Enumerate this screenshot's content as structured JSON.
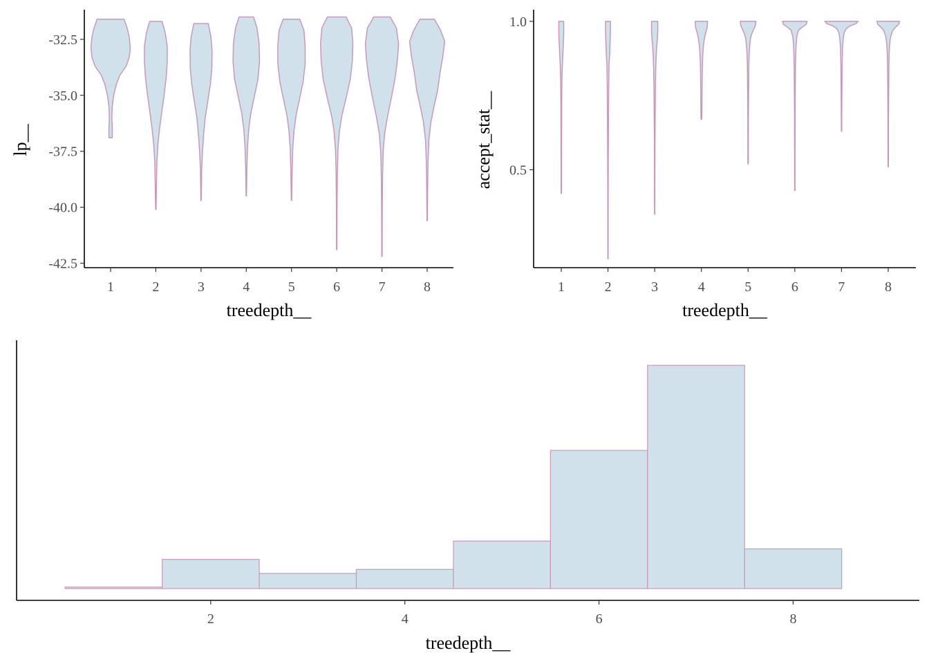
{
  "colors": {
    "fill": "#d1e1ec",
    "outline": "#c799b9",
    "axis": "#000000",
    "tick_text": "#4d4d4d"
  },
  "chart_data": [
    {
      "type": "violin",
      "xlabel": "treedepth__",
      "ylabel": "lp__",
      "categories": [
        "1",
        "2",
        "3",
        "4",
        "5",
        "6",
        "7",
        "8"
      ],
      "y_ticks": [
        -32.5,
        -35.0,
        -37.5,
        -40.0,
        -42.5
      ],
      "y_tick_labels": [
        "-32.5",
        "-35.0",
        "-37.5",
        "-40.0",
        "-42.5"
      ],
      "ylim": [
        -42.7,
        -31.3
      ],
      "violins": [
        {
          "category": "1",
          "max": -31.6,
          "min": -36.9,
          "profile": [
            [
              -31.6,
              0.65
            ],
            [
              -32.0,
              0.8
            ],
            [
              -32.4,
              0.9
            ],
            [
              -32.9,
              0.95
            ],
            [
              -33.3,
              0.9
            ],
            [
              -33.7,
              0.75
            ],
            [
              -34.1,
              0.45
            ],
            [
              -34.5,
              0.28
            ],
            [
              -35.0,
              0.15
            ],
            [
              -35.5,
              0.08
            ],
            [
              -36.0,
              0.06
            ],
            [
              -36.5,
              0.08
            ],
            [
              -36.9,
              0.08
            ]
          ]
        },
        {
          "category": "2",
          "max": -31.7,
          "min": -40.1,
          "profile": [
            [
              -31.7,
              0.3
            ],
            [
              -32.2,
              0.45
            ],
            [
              -32.8,
              0.55
            ],
            [
              -33.5,
              0.55
            ],
            [
              -34.2,
              0.5
            ],
            [
              -35.0,
              0.4
            ],
            [
              -35.8,
              0.28
            ],
            [
              -36.5,
              0.18
            ],
            [
              -37.2,
              0.1
            ],
            [
              -38.0,
              0.05
            ],
            [
              -39.0,
              0.03
            ],
            [
              -40.1,
              0.01
            ]
          ]
        },
        {
          "category": "3",
          "max": -31.8,
          "min": -39.7,
          "profile": [
            [
              -31.8,
              0.35
            ],
            [
              -32.4,
              0.48
            ],
            [
              -33.0,
              0.53
            ],
            [
              -33.8,
              0.52
            ],
            [
              -34.5,
              0.45
            ],
            [
              -35.3,
              0.32
            ],
            [
              -36.0,
              0.2
            ],
            [
              -36.8,
              0.12
            ],
            [
              -37.5,
              0.07
            ],
            [
              -38.3,
              0.03
            ],
            [
              -39.0,
              0.02
            ],
            [
              -39.7,
              0.01
            ]
          ]
        },
        {
          "category": "4",
          "max": -31.5,
          "min": -39.5,
          "profile": [
            [
              -31.5,
              0.35
            ],
            [
              -32.0,
              0.52
            ],
            [
              -32.7,
              0.62
            ],
            [
              -33.5,
              0.64
            ],
            [
              -34.3,
              0.56
            ],
            [
              -35.1,
              0.38
            ],
            [
              -35.8,
              0.22
            ],
            [
              -36.5,
              0.12
            ],
            [
              -37.3,
              0.06
            ],
            [
              -38.2,
              0.03
            ],
            [
              -39.5,
              0.01
            ]
          ]
        },
        {
          "category": "5",
          "max": -31.6,
          "min": -39.7,
          "profile": [
            [
              -31.6,
              0.4
            ],
            [
              -32.1,
              0.6
            ],
            [
              -32.8,
              0.66
            ],
            [
              -33.6,
              0.66
            ],
            [
              -34.4,
              0.56
            ],
            [
              -35.2,
              0.38
            ],
            [
              -35.9,
              0.22
            ],
            [
              -36.6,
              0.12
            ],
            [
              -37.4,
              0.06
            ],
            [
              -38.4,
              0.03
            ],
            [
              -39.7,
              0.01
            ]
          ]
        },
        {
          "category": "6",
          "max": -31.5,
          "min": -41.9,
          "profile": [
            [
              -31.5,
              0.45
            ],
            [
              -32.0,
              0.72
            ],
            [
              -32.7,
              0.78
            ],
            [
              -33.5,
              0.75
            ],
            [
              -34.3,
              0.65
            ],
            [
              -35.1,
              0.46
            ],
            [
              -35.9,
              0.25
            ],
            [
              -36.6,
              0.13
            ],
            [
              -37.4,
              0.06
            ],
            [
              -38.5,
              0.03
            ],
            [
              -40.0,
              0.015
            ],
            [
              -41.9,
              0.01
            ]
          ]
        },
        {
          "category": "7",
          "max": -31.5,
          "min": -42.2,
          "profile": [
            [
              -31.5,
              0.4
            ],
            [
              -32.0,
              0.7
            ],
            [
              -32.7,
              0.8
            ],
            [
              -33.4,
              0.75
            ],
            [
              -34.2,
              0.64
            ],
            [
              -35.0,
              0.48
            ],
            [
              -35.9,
              0.28
            ],
            [
              -36.7,
              0.13
            ],
            [
              -37.5,
              0.06
            ],
            [
              -38.6,
              0.03
            ],
            [
              -40.2,
              0.015
            ],
            [
              -42.2,
              0.01
            ]
          ]
        },
        {
          "category": "8",
          "max": -31.6,
          "min": -40.6,
          "profile": [
            [
              -31.6,
              0.35
            ],
            [
              -32.1,
              0.65
            ],
            [
              -32.6,
              0.85
            ],
            [
              -33.3,
              0.75
            ],
            [
              -34.0,
              0.62
            ],
            [
              -34.8,
              0.5
            ],
            [
              -35.5,
              0.33
            ],
            [
              -36.2,
              0.18
            ],
            [
              -37.0,
              0.08
            ],
            [
              -38.0,
              0.04
            ],
            [
              -39.2,
              0.02
            ],
            [
              -40.6,
              0.01
            ]
          ]
        }
      ]
    },
    {
      "type": "violin",
      "xlabel": "treedepth__",
      "ylabel": "accept_stat__",
      "categories": [
        "1",
        "2",
        "3",
        "4",
        "5",
        "6",
        "7",
        "8"
      ],
      "y_ticks": [
        1.0,
        0.5
      ],
      "y_tick_labels": [
        "1.0",
        "0.5"
      ],
      "ylim": [
        0.17,
        1.03
      ],
      "violins": [
        {
          "category": "1",
          "max": 1.0,
          "min": 0.42,
          "profile": [
            [
              1.0,
              0.12
            ],
            [
              0.97,
              0.12
            ],
            [
              0.94,
              0.11
            ],
            [
              0.91,
              0.09
            ],
            [
              0.88,
              0.07
            ],
            [
              0.85,
              0.05
            ],
            [
              0.8,
              0.03
            ],
            [
              0.72,
              0.02
            ],
            [
              0.6,
              0.015
            ],
            [
              0.5,
              0.012
            ],
            [
              0.42,
              0.01
            ]
          ]
        },
        {
          "category": "2",
          "max": 1.0,
          "min": 0.2,
          "profile": [
            [
              1.0,
              0.12
            ],
            [
              0.97,
              0.12
            ],
            [
              0.93,
              0.1
            ],
            [
              0.89,
              0.08
            ],
            [
              0.85,
              0.05
            ],
            [
              0.78,
              0.035
            ],
            [
              0.68,
              0.025
            ],
            [
              0.55,
              0.015
            ],
            [
              0.4,
              0.01
            ],
            [
              0.2,
              0.008
            ]
          ]
        },
        {
          "category": "3",
          "max": 1.0,
          "min": 0.35,
          "profile": [
            [
              1.0,
              0.15
            ],
            [
              0.97,
              0.15
            ],
            [
              0.94,
              0.13
            ],
            [
              0.91,
              0.09
            ],
            [
              0.88,
              0.07
            ],
            [
              0.84,
              0.05
            ],
            [
              0.78,
              0.035
            ],
            [
              0.7,
              0.025
            ],
            [
              0.6,
              0.015
            ],
            [
              0.48,
              0.01
            ],
            [
              0.35,
              0.008
            ]
          ]
        },
        {
          "category": "4",
          "max": 1.0,
          "min": 0.67,
          "profile": [
            [
              1.0,
              0.3
            ],
            [
              0.98,
              0.28
            ],
            [
              0.96,
              0.2
            ],
            [
              0.94,
              0.14
            ],
            [
              0.92,
              0.1
            ],
            [
              0.89,
              0.07
            ],
            [
              0.86,
              0.05
            ],
            [
              0.82,
              0.04
            ],
            [
              0.76,
              0.03
            ],
            [
              0.7,
              0.025
            ],
            [
              0.67,
              0.02
            ]
          ]
        },
        {
          "category": "5",
          "max": 1.0,
          "min": 0.52,
          "profile": [
            [
              1.0,
              0.38
            ],
            [
              0.985,
              0.35
            ],
            [
              0.97,
              0.25
            ],
            [
              0.955,
              0.16
            ],
            [
              0.94,
              0.11
            ],
            [
              0.92,
              0.08
            ],
            [
              0.89,
              0.05
            ],
            [
              0.85,
              0.035
            ],
            [
              0.78,
              0.025
            ],
            [
              0.68,
              0.015
            ],
            [
              0.58,
              0.012
            ],
            [
              0.52,
              0.01
            ]
          ]
        },
        {
          "category": "6",
          "max": 1.0,
          "min": 0.43,
          "profile": [
            [
              1.0,
              0.6
            ],
            [
              0.99,
              0.55
            ],
            [
              0.98,
              0.35
            ],
            [
              0.97,
              0.18
            ],
            [
              0.95,
              0.1
            ],
            [
              0.93,
              0.07
            ],
            [
              0.9,
              0.05
            ],
            [
              0.86,
              0.035
            ],
            [
              0.8,
              0.025
            ],
            [
              0.7,
              0.015
            ],
            [
              0.55,
              0.01
            ],
            [
              0.43,
              0.008
            ]
          ]
        },
        {
          "category": "7",
          "max": 1.0,
          "min": 0.63,
          "profile": [
            [
              1.0,
              0.8
            ],
            [
              0.992,
              0.7
            ],
            [
              0.985,
              0.42
            ],
            [
              0.975,
              0.22
            ],
            [
              0.96,
              0.12
            ],
            [
              0.94,
              0.08
            ],
            [
              0.91,
              0.05
            ],
            [
              0.87,
              0.035
            ],
            [
              0.82,
              0.025
            ],
            [
              0.75,
              0.018
            ],
            [
              0.68,
              0.012
            ],
            [
              0.63,
              0.01
            ]
          ]
        },
        {
          "category": "8",
          "max": 1.0,
          "min": 0.51,
          "profile": [
            [
              1.0,
              0.55
            ],
            [
              0.99,
              0.5
            ],
            [
              0.98,
              0.35
            ],
            [
              0.97,
              0.22
            ],
            [
              0.95,
              0.12
            ],
            [
              0.93,
              0.08
            ],
            [
              0.9,
              0.05
            ],
            [
              0.86,
              0.035
            ],
            [
              0.8,
              0.025
            ],
            [
              0.7,
              0.015
            ],
            [
              0.6,
              0.012
            ],
            [
              0.51,
              0.01
            ]
          ]
        }
      ]
    },
    {
      "type": "histogram",
      "xlabel": "treedepth__",
      "ylabel": "",
      "x_ticks": [
        2,
        4,
        6,
        8
      ],
      "x_tick_labels": [
        "2",
        "4",
        "6",
        "8"
      ],
      "xlim": [
        0.0,
        9.3
      ],
      "ylim": [
        0,
        1.05
      ],
      "bins": [
        {
          "x0": 0.5,
          "x1": 1.5,
          "value": 0.007
        },
        {
          "x0": 1.5,
          "x1": 2.5,
          "value": 0.131
        },
        {
          "x0": 2.5,
          "x1": 3.5,
          "value": 0.068
        },
        {
          "x0": 3.5,
          "x1": 4.5,
          "value": 0.086
        },
        {
          "x0": 4.5,
          "x1": 5.5,
          "value": 0.213
        },
        {
          "x0": 5.5,
          "x1": 6.5,
          "value": 0.619
        },
        {
          "x0": 6.5,
          "x1": 7.5,
          "value": 1.0
        },
        {
          "x0": 7.5,
          "x1": 8.5,
          "value": 0.178
        }
      ]
    }
  ]
}
